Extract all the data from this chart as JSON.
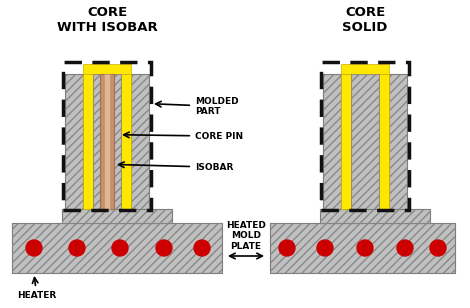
{
  "title_left": "CORE\nWITH ISOBAR",
  "title_right": "CORE\nSOLID",
  "labels": {
    "molded_part": "MOLDED\nPART",
    "core_pin": "CORE PIN",
    "isobar": "ISOBAR",
    "heated_mold_plate": "HEATED\nMOLD\nPLATE",
    "heater": "HEATER"
  },
  "colors": {
    "background": "#ffffff",
    "yellow": "#FFE800",
    "steel_light": "#c0c0c0",
    "steel_dark": "#909090",
    "copper_outer": "#c8906a",
    "copper_inner": "#e0b898",
    "red_dot": "#cc0000",
    "black": "#000000"
  },
  "figsize": [
    4.7,
    3.08
  ],
  "dpi": 100
}
